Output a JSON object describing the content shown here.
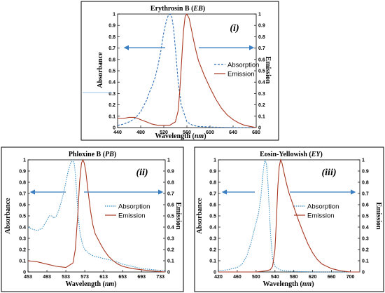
{
  "chart_data": [
    {
      "type": "line",
      "title_main": "Erythrosin B (",
      "title_abbr": "EB",
      "title_end": ")",
      "panel_tag": "(i)",
      "xlabel_main": "Wavelength (",
      "xlabel_unit": "nm",
      "xlabel_end": ")",
      "ylabel_left": "Absorbance",
      "ylabel_right": "Emission",
      "xlim": [
        440,
        680
      ],
      "ylim": [
        0,
        1
      ],
      "xticks": [
        "440",
        "480",
        "520",
        "560",
        "600",
        "640",
        "680"
      ],
      "yticks_left": [
        "0",
        "0.1",
        "0.2",
        "0.3",
        "0.4",
        "0.5",
        "0.6",
        "0.7",
        "0.8",
        "0.9",
        "1"
      ],
      "yticks_right": [
        "0",
        "0.1",
        "0.2",
        "0.3",
        "0.4",
        "0.5",
        "0.6",
        "0.7",
        "0.8",
        "0.9",
        "1"
      ],
      "legend": [
        "Absorption",
        "Emission"
      ],
      "series": [
        {
          "name": "Absorption",
          "color": "#2e6fb8",
          "style": "dashed",
          "x": [
            440,
            450,
            460,
            470,
            480,
            490,
            495,
            500,
            505,
            510,
            515,
            520,
            525,
            528,
            531,
            534,
            537,
            540,
            545,
            550,
            560,
            570,
            580,
            600,
            640,
            680
          ],
          "y": [
            0.02,
            0.03,
            0.05,
            0.08,
            0.14,
            0.24,
            0.31,
            0.37,
            0.44,
            0.55,
            0.68,
            0.84,
            0.95,
            0.99,
            1.0,
            0.97,
            0.87,
            0.7,
            0.4,
            0.2,
            0.05,
            0.02,
            0.01,
            0.005,
            0.0,
            0.0
          ]
        },
        {
          "name": "Emission",
          "color": "#a83a24",
          "style": "solid",
          "x": [
            440,
            450,
            460,
            470,
            480,
            490,
            500,
            510,
            520,
            530,
            540,
            545,
            548,
            551,
            554,
            557,
            560,
            564,
            568,
            572,
            576,
            580,
            590,
            600,
            610,
            620,
            630,
            640,
            650,
            660,
            670,
            680
          ],
          "y": [
            0.08,
            0.08,
            0.09,
            0.09,
            0.07,
            0.05,
            0.03,
            0.02,
            0.02,
            0.02,
            0.05,
            0.15,
            0.35,
            0.6,
            0.85,
            0.98,
            1.0,
            0.96,
            0.86,
            0.76,
            0.67,
            0.59,
            0.46,
            0.35,
            0.25,
            0.17,
            0.11,
            0.07,
            0.04,
            0.02,
            0.01,
            0.0
          ]
        }
      ]
    },
    {
      "type": "line",
      "title_main": "Phloxine B (",
      "title_abbr": "PB",
      "title_end": ")",
      "panel_tag": "(ii)",
      "xlabel_main": "Wavelength (",
      "xlabel_unit": "nm",
      "xlabel_end": ")",
      "ylabel_left": "Absorbance",
      "ylabel_right": "Emission",
      "xlim": [
        453,
        743
      ],
      "ylim": [
        0,
        1
      ],
      "xticks": [
        "453",
        "493",
        "533",
        "573",
        "613",
        "653",
        "693",
        "733"
      ],
      "yticks_left": [
        "0",
        "0.1",
        "0.2",
        "0.3",
        "0.4",
        "0.5",
        "0.6",
        "0.7",
        "0.8",
        "0.9",
        "1"
      ],
      "yticks_right": [
        "0",
        "0.1",
        "0.2",
        "0.3",
        "0.4",
        "0.5",
        "0.6",
        "0.7",
        "0.8",
        "0.9",
        "1"
      ],
      "legend": [
        "Absorption",
        "Emission"
      ],
      "series": [
        {
          "name": "Absorption",
          "color": "#3a8fc8",
          "style": "dotted",
          "x": [
            453,
            463,
            473,
            483,
            493,
            498,
            503,
            508,
            513,
            518,
            523,
            528,
            533,
            538,
            543,
            548,
            551,
            553,
            556,
            559,
            563,
            568,
            573,
            583,
            593,
            613,
            633,
            653,
            693,
            743
          ],
          "y": [
            0.4,
            0.38,
            0.37,
            0.39,
            0.46,
            0.5,
            0.5,
            0.48,
            0.5,
            0.55,
            0.62,
            0.7,
            0.8,
            0.9,
            0.97,
            1.0,
            0.96,
            0.88,
            0.7,
            0.5,
            0.35,
            0.25,
            0.2,
            0.16,
            0.14,
            0.12,
            0.1,
            0.07,
            0.03,
            0.01
          ]
        },
        {
          "name": "Emission",
          "color": "#a83a24",
          "style": "solid",
          "x": [
            453,
            473,
            493,
            513,
            533,
            548,
            553,
            558,
            562,
            566,
            569,
            572,
            575,
            580,
            585,
            590,
            595,
            600,
            605,
            613,
            623,
            633,
            643,
            653,
            673,
            693,
            713,
            743
          ],
          "y": [
            0.1,
            0.09,
            0.07,
            0.05,
            0.04,
            0.08,
            0.2,
            0.5,
            0.8,
            0.97,
            1.0,
            0.97,
            0.9,
            0.72,
            0.55,
            0.42,
            0.34,
            0.3,
            0.26,
            0.2,
            0.14,
            0.1,
            0.07,
            0.05,
            0.03,
            0.02,
            0.01,
            0.0
          ]
        }
      ]
    },
    {
      "type": "line",
      "title_main": "Eosin-Yellowish (",
      "title_abbr": "EY",
      "title_end": ")",
      "panel_tag": "(iii)",
      "xlabel_main": "Wavelength (",
      "xlabel_unit": "nm",
      "xlabel_end": ")",
      "ylabel_left": "Absorbance",
      "ylabel_right": "Emission",
      "xlim": [
        420,
        720
      ],
      "ylim": [
        0,
        1
      ],
      "xticks": [
        "420",
        "460",
        "500",
        "540",
        "580",
        "620",
        "660",
        "700"
      ],
      "yticks_left": [
        "0",
        "0.1",
        "0.2",
        "0.3",
        "0.4",
        "0.5",
        "0.6",
        "0.7",
        "0.8",
        "0.9",
        "1"
      ],
      "yticks_right": [
        "0",
        "0.1",
        "0.2",
        "0.3",
        "0.4",
        "0.5",
        "0.6",
        "0.7",
        "0.8",
        "0.9",
        "1"
      ],
      "legend": [
        "Absorption",
        "Emission"
      ],
      "series": [
        {
          "name": "Absorption",
          "color": "#3a8fc8",
          "style": "dotted",
          "x": [
            420,
            440,
            460,
            470,
            480,
            490,
            495,
            500,
            505,
            510,
            513,
            516,
            519,
            522,
            525,
            528,
            531,
            535,
            540,
            550,
            560,
            580,
            620,
            720
          ],
          "y": [
            0.01,
            0.02,
            0.04,
            0.07,
            0.14,
            0.27,
            0.36,
            0.44,
            0.52,
            0.66,
            0.8,
            0.93,
            1.0,
            0.96,
            0.8,
            0.55,
            0.32,
            0.12,
            0.05,
            0.02,
            0.01,
            0.005,
            0.0,
            0.0
          ]
        },
        {
          "name": "Emission",
          "color": "#a83a24",
          "style": "solid",
          "x": [
            420,
            460,
            500,
            520,
            530,
            535,
            540,
            543,
            546,
            549,
            552,
            555,
            560,
            565,
            570,
            580,
            590,
            600,
            610,
            620,
            630,
            640,
            660,
            680,
            700,
            720
          ],
          "y": [
            0.0,
            0.0,
            0.0,
            0.01,
            0.02,
            0.05,
            0.2,
            0.45,
            0.75,
            0.94,
            1.0,
            0.97,
            0.87,
            0.78,
            0.7,
            0.58,
            0.46,
            0.35,
            0.25,
            0.17,
            0.11,
            0.07,
            0.03,
            0.01,
            0.0,
            0.0
          ]
        }
      ]
    }
  ]
}
